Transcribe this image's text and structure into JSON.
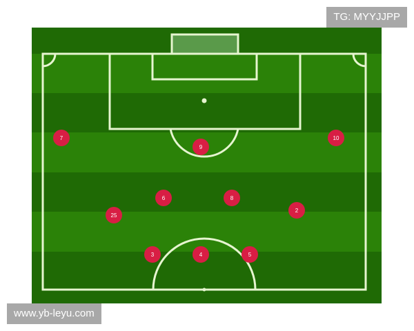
{
  "watermark_top": "TG: MYYJJPP",
  "watermark_bottom": "www.yb-leyu.com",
  "colors": {
    "pitch_dark": "#1f6a05",
    "pitch_light": "#2b8208",
    "lines": "#e6f5d0",
    "player": "#d81e44",
    "player_text": "#ffffff"
  },
  "players": [
    {
      "number": "7"
    },
    {
      "number": "10"
    },
    {
      "number": "9"
    },
    {
      "number": "6"
    },
    {
      "number": "8"
    },
    {
      "number": "2"
    },
    {
      "number": "25"
    },
    {
      "number": "3"
    },
    {
      "number": "4"
    },
    {
      "number": "5"
    }
  ]
}
